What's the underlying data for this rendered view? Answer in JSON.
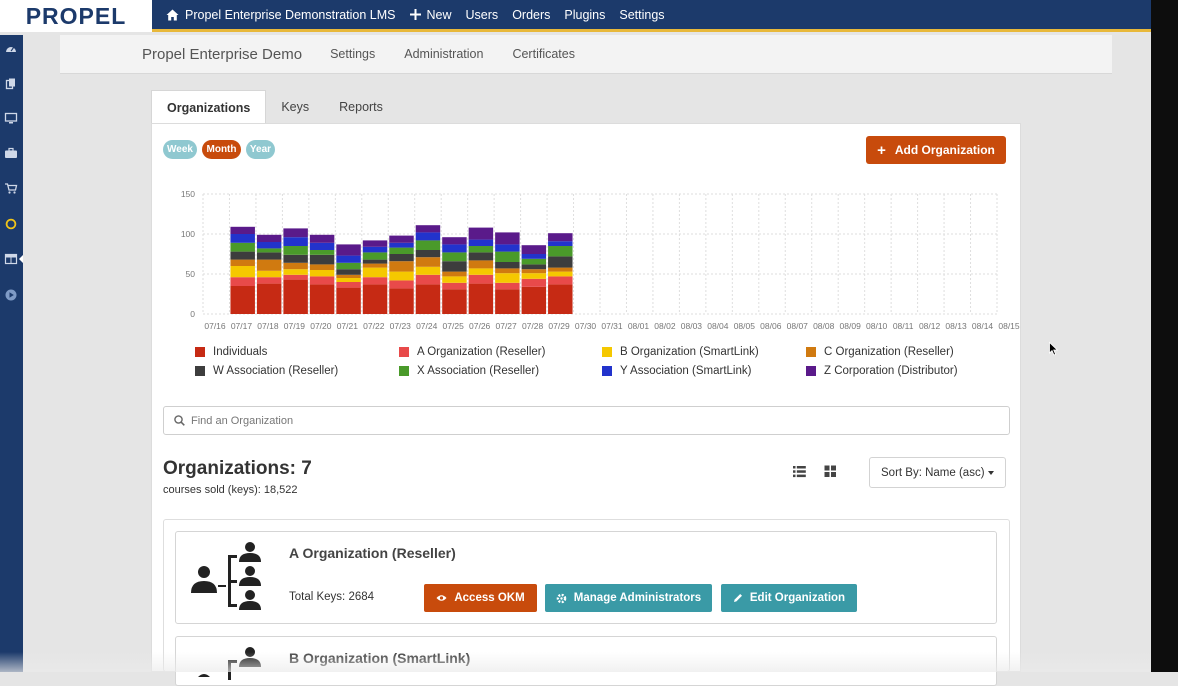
{
  "logo": "PROPEL",
  "topnav": {
    "home_label": "Propel Enterprise Demonstration LMS",
    "new_label": "New",
    "users_label": "Users",
    "orders_label": "Orders",
    "plugins_label": "Plugins",
    "settings_label": "Settings"
  },
  "rail_icons": [
    "dashboard-icon",
    "copy-icon",
    "monitor-icon",
    "briefcase-icon",
    "cart-icon",
    "refresh-icon",
    "table-icon",
    "play-icon"
  ],
  "subheader": {
    "brand": "Propel Enterprise Demo",
    "links": [
      "Settings",
      "Administration",
      "Certificates"
    ]
  },
  "tabs": [
    "Organizations",
    "Keys",
    "Reports"
  ],
  "period_pills": [
    {
      "label": "Week",
      "active": false
    },
    {
      "label": "Month",
      "active": true
    },
    {
      "label": "Year",
      "active": false
    }
  ],
  "add_button": "Add Organization",
  "chart_data": {
    "type": "bar",
    "stacked": true,
    "ylim": [
      0,
      150
    ],
    "yticks": [
      0,
      50,
      100,
      150
    ],
    "categories": [
      "07/16",
      "07/17",
      "07/18",
      "07/19",
      "07/20",
      "07/21",
      "07/22",
      "07/23",
      "07/24",
      "07/25",
      "07/26",
      "07/27",
      "07/28",
      "07/29",
      "07/30",
      "07/31",
      "08/01",
      "08/02",
      "08/03",
      "08/04",
      "08/05",
      "08/06",
      "08/07",
      "08/08",
      "08/09",
      "08/10",
      "08/11",
      "08/12",
      "08/13",
      "08/14",
      "08/15"
    ],
    "grid": true,
    "series": [
      {
        "name": "Individuals",
        "color": "#c62a14",
        "values": [
          0,
          35,
          38,
          43,
          37,
          33,
          37,
          32,
          37,
          31,
          38,
          31,
          34,
          37,
          0,
          0,
          0,
          0,
          0,
          0,
          0,
          0,
          0,
          0,
          0,
          0,
          0,
          0,
          0,
          0,
          0
        ]
      },
      {
        "name": "A Organization (Reseller)",
        "color": "#e84a4a",
        "values": [
          0,
          11,
          8,
          6,
          10,
          7,
          9,
          10,
          12,
          8,
          11,
          8,
          10,
          10,
          0,
          0,
          0,
          0,
          0,
          0,
          0,
          0,
          0,
          0,
          0,
          0,
          0,
          0,
          0,
          0,
          0
        ]
      },
      {
        "name": "B Organization (SmartLink)",
        "color": "#f5c800",
        "values": [
          0,
          14,
          8,
          7,
          8,
          5,
          12,
          11,
          10,
          8,
          8,
          12,
          7,
          6,
          0,
          0,
          0,
          0,
          0,
          0,
          0,
          0,
          0,
          0,
          0,
          0,
          0,
          0,
          0,
          0,
          0
        ]
      },
      {
        "name": "C Organization (Reseller)",
        "color": "#d07a10",
        "values": [
          0,
          8,
          14,
          8,
          7,
          4,
          5,
          13,
          12,
          6,
          10,
          6,
          5,
          5,
          0,
          0,
          0,
          0,
          0,
          0,
          0,
          0,
          0,
          0,
          0,
          0,
          0,
          0,
          0,
          0,
          0
        ]
      },
      {
        "name": "W Association (Reseller)",
        "color": "#3d3d3d",
        "values": [
          0,
          10,
          9,
          10,
          12,
          7,
          5,
          9,
          9,
          13,
          10,
          8,
          6,
          14,
          0,
          0,
          0,
          0,
          0,
          0,
          0,
          0,
          0,
          0,
          0,
          0,
          0,
          0,
          0,
          0,
          0
        ]
      },
      {
        "name": "X Association (Reseller)",
        "color": "#4a9a2a",
        "values": [
          0,
          11,
          5,
          11,
          6,
          8,
          9,
          8,
          12,
          11,
          8,
          13,
          7,
          13,
          0,
          0,
          0,
          0,
          0,
          0,
          0,
          0,
          0,
          0,
          0,
          0,
          0,
          0,
          0,
          0,
          0
        ]
      },
      {
        "name": "Y Association (SmartLink)",
        "color": "#2233cc",
        "values": [
          0,
          11,
          8,
          11,
          9,
          9,
          7,
          6,
          10,
          10,
          8,
          9,
          6,
          6,
          0,
          0,
          0,
          0,
          0,
          0,
          0,
          0,
          0,
          0,
          0,
          0,
          0,
          0,
          0,
          0,
          0
        ]
      },
      {
        "name": "Z Corporation (Distributor)",
        "color": "#5a1a8a",
        "values": [
          0,
          9,
          9,
          11,
          10,
          14,
          8,
          9,
          9,
          9,
          15,
          15,
          11,
          10,
          0,
          0,
          0,
          0,
          0,
          0,
          0,
          0,
          0,
          0,
          0,
          0,
          0,
          0,
          0,
          0,
          0
        ]
      }
    ]
  },
  "search": {
    "placeholder": "Find an Organization"
  },
  "summary": {
    "title": "Organizations: 7",
    "subtitle": "courses sold (keys): 18,522"
  },
  "view_icons": [
    "list-view-icon",
    "grid-view-icon"
  ],
  "sort": {
    "label": "Sort By: Name (asc)"
  },
  "orgs": [
    {
      "name": "A Organization (Reseller)",
      "keys": "Total Keys: 2684",
      "buttons": {
        "okm": "Access OKM",
        "admins": "Manage Administrators",
        "edit": "Edit Organization"
      }
    },
    {
      "name": "B Organization (SmartLink)"
    }
  ],
  "colors": {
    "navy": "#1c3a6b",
    "accent_orange": "#c84b0c",
    "teal": "#3a9aa6",
    "pill_light": "#8fc8d0",
    "yellow_rule": "#e8b83a"
  }
}
